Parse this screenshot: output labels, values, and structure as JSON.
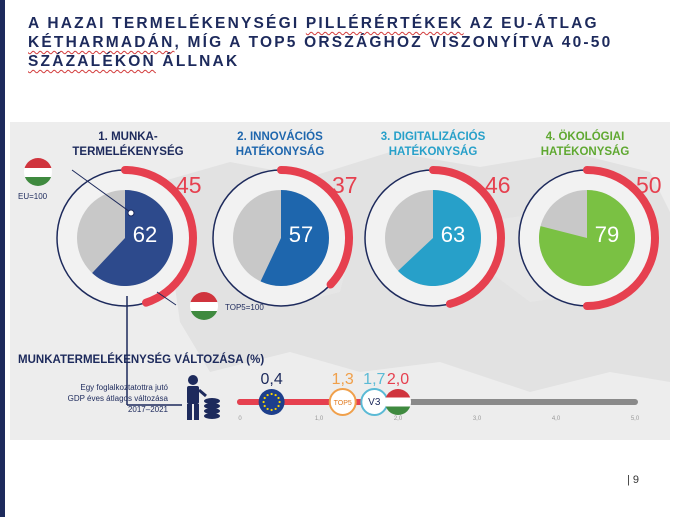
{
  "title": {
    "line1_part1": "A HAZAI TERMELÉKENYSÉGI ",
    "line1_part2": "PILLÉRÉRTÉKEK",
    "line1_part3": " AZ EU-ÁTLAG",
    "line2_part1": "KÉTHARMADÁN",
    "line2_part2": ", MÍG A TOP5 ORSZÁGHOZ VISZONYÍTVA 40-50",
    "line3_part1": "SZÁZALÉKON",
    "line3_part2": " ÁLLNAK"
  },
  "pillars": [
    {
      "title_line1": "1. MUNKA-",
      "title_line2": "TERMELÉKENYSÉG",
      "inner_value": "62",
      "arc_value": "45",
      "color": "#2d4a8c",
      "share": 0.62,
      "arc_share": 0.45
    },
    {
      "title_line1": "2. INNOVÁCIÓS",
      "title_line2": "HATÉKONYSÁG",
      "inner_value": "57",
      "arc_value": "37",
      "color": "#1e66ad",
      "share": 0.57,
      "arc_share": 0.37
    },
    {
      "title_line1": "3. DIGITALIZÁCIÓS",
      "title_line2": "HATÉKONYSÁG",
      "inner_value": "63",
      "arc_value": "46",
      "color": "#27a0c9",
      "share": 0.63,
      "arc_share": 0.46
    },
    {
      "title_line1": "4. ÖKOLÓGIAI",
      "title_line2": "HATÉKONYSÁG",
      "inner_value": "79",
      "arc_value": "50",
      "color": "#7ac143",
      "share": 0.79,
      "arc_share": 0.5
    }
  ],
  "legend": {
    "eu": "EU=100",
    "top5": "TOP5=100"
  },
  "change": {
    "title": "MUNKATERMELÉKENYSÉG VÁLTOZÁSA (%)",
    "desc_line1": "Egy foglalkoztatottra jutó",
    "desc_line2": "GDP éves átlagos változása",
    "desc_line3": "2017–2021",
    "values": [
      {
        "label": "0,4",
        "value": 0.4,
        "marker": "eu-flag",
        "color": "#1d2a5c"
      },
      {
        "label": "1,3",
        "value": 1.3,
        "marker": "TOP5",
        "color": "#f0a04b"
      },
      {
        "label": "1,7",
        "value": 1.7,
        "marker": "V3",
        "color": "#5bbad5"
      },
      {
        "label": "2,0",
        "value": 2.0,
        "marker": "hu-flag",
        "color": "#e6404f"
      }
    ],
    "ticks": [
      "0",
      "1,0",
      "2,0",
      "3,0",
      "4,0",
      "5,0"
    ],
    "max": 5.0
  },
  "page_number": "| 9"
}
